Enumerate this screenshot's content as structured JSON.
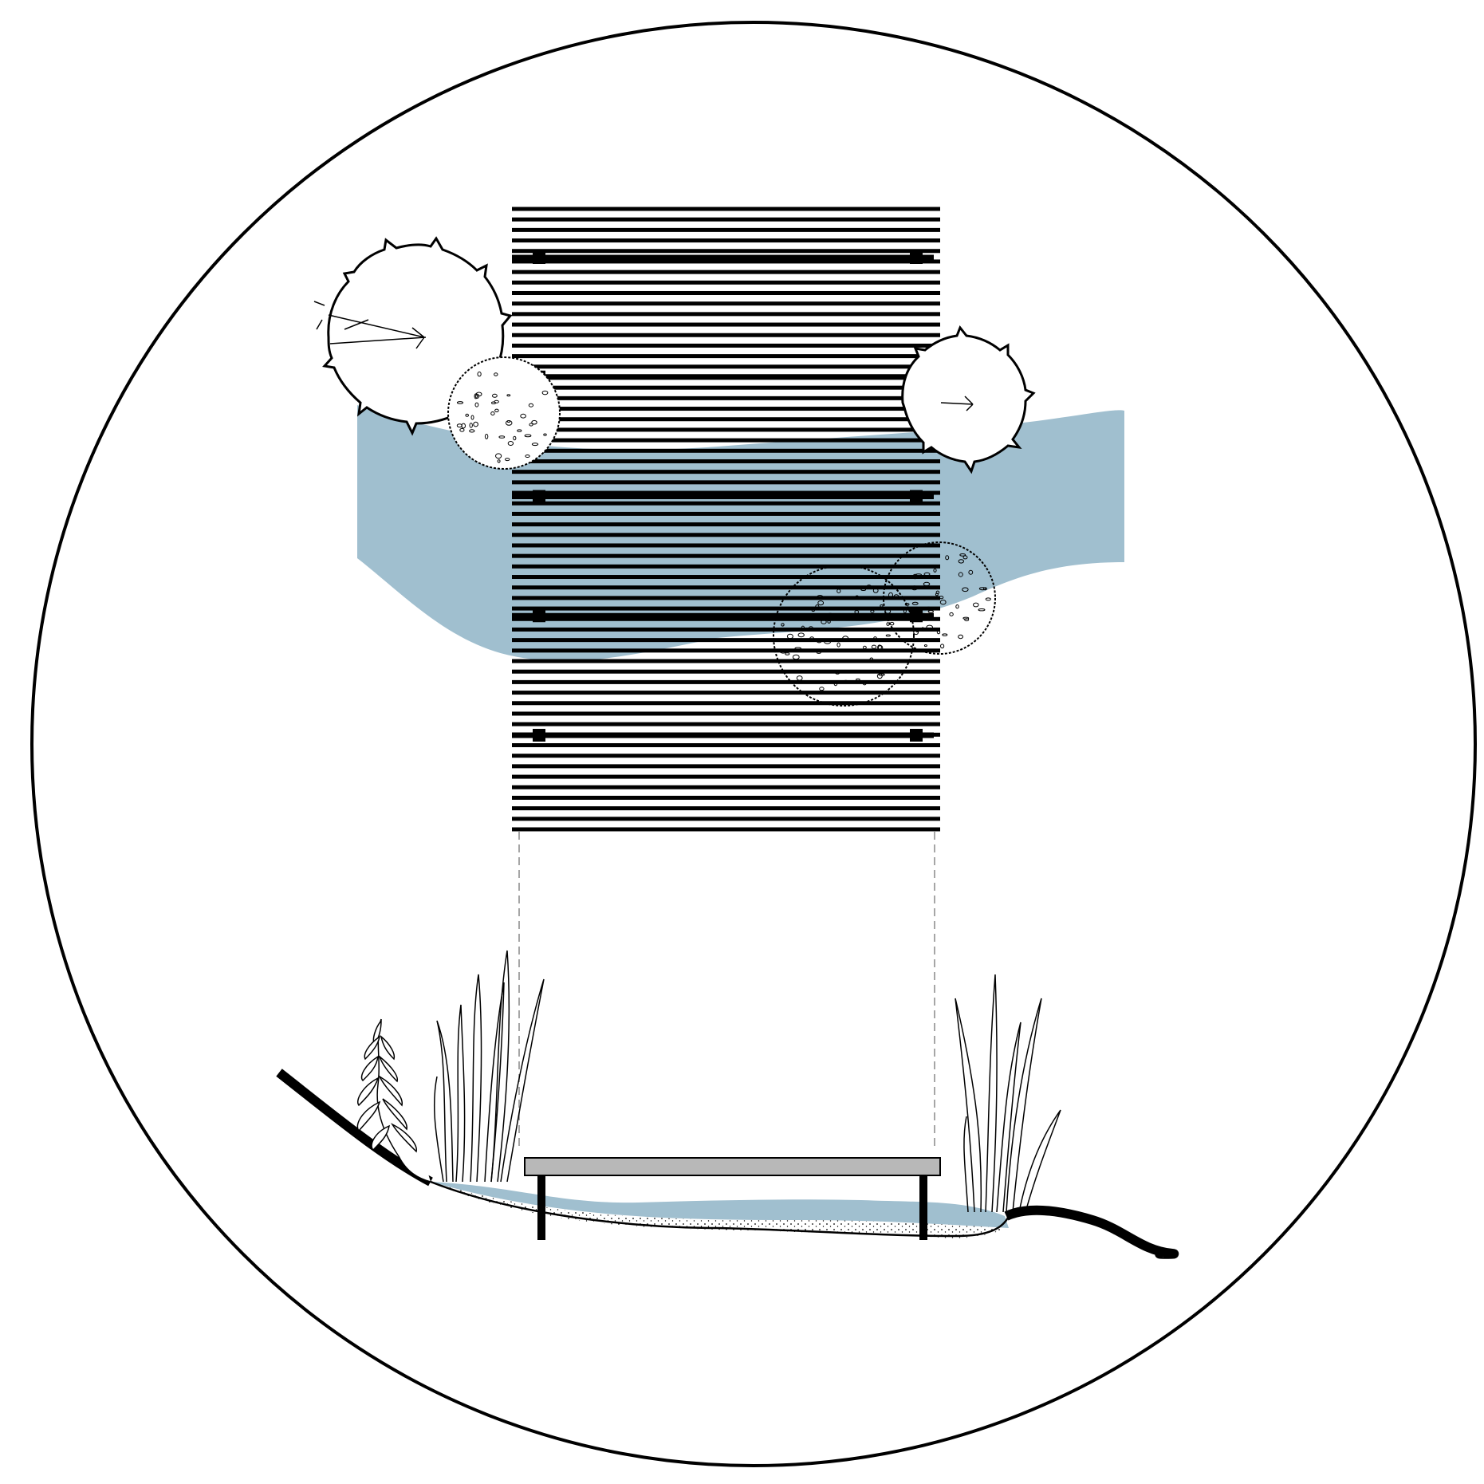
{
  "diagram": {
    "type": "boardwalk-plan-and-section",
    "colors": {
      "ink": "#000000",
      "water": "#a0bfcf",
      "deck_section": "#b8b8b8",
      "background": "#ffffff"
    },
    "plan": {
      "deck": {
        "board_count": 60,
        "board_direction": "horizontal"
      },
      "piers": {
        "rows": 5,
        "columns": 2
      },
      "vegetation": [
        {
          "kind": "canopy-tree",
          "icon": "tree-canopy-icon"
        },
        {
          "kind": "canopy-tree",
          "icon": "tree-canopy-icon"
        },
        {
          "kind": "shrub",
          "icon": "shrub-icon"
        },
        {
          "kind": "shrub",
          "icon": "shrub-icon"
        },
        {
          "kind": "shrub",
          "icon": "shrub-icon"
        }
      ],
      "water": "stream"
    },
    "section": {
      "deck": "boardwalk-section",
      "posts": 2,
      "water": "stream-section",
      "vegetation": [
        {
          "kind": "fern",
          "icon": "fern-icon"
        },
        {
          "kind": "reeds",
          "icon": "reeds-icon"
        },
        {
          "kind": "reeds",
          "icon": "reeds-icon"
        }
      ]
    },
    "projection_lines": "dashed"
  }
}
